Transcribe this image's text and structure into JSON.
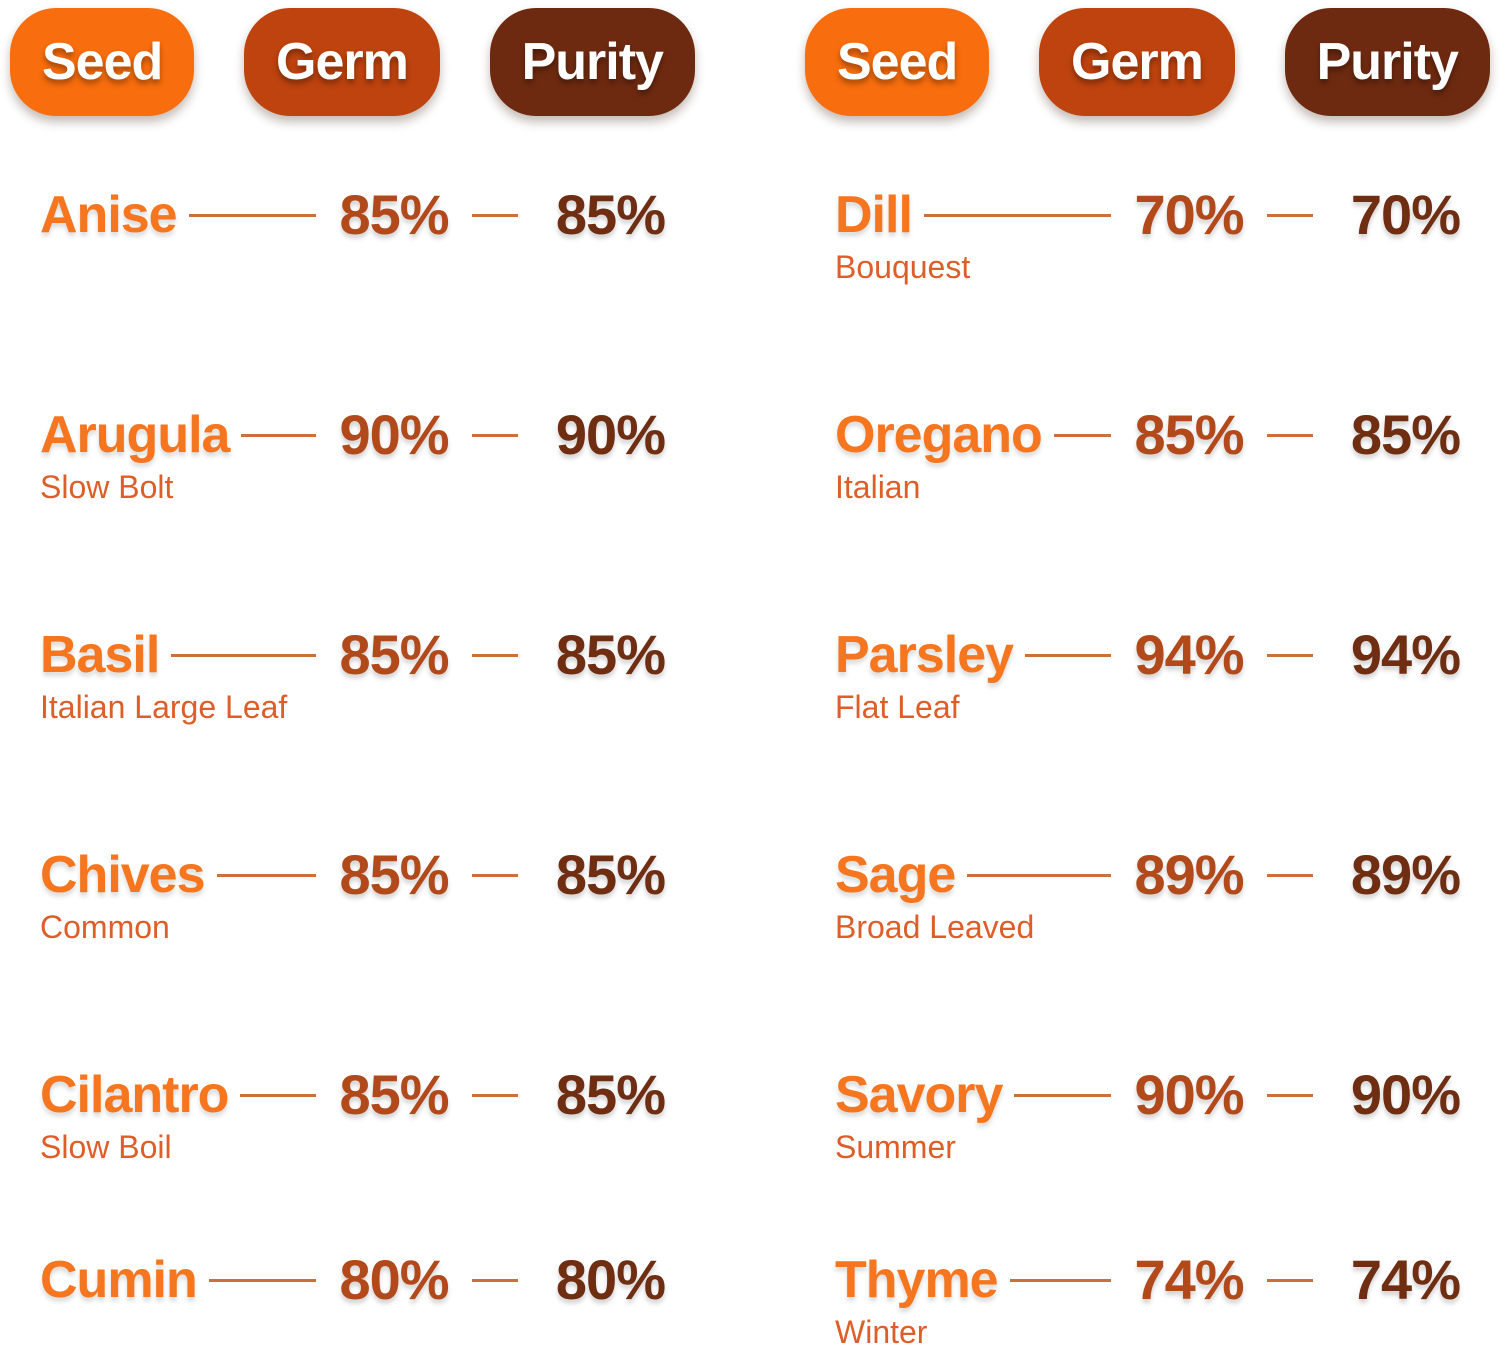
{
  "title_pills": {
    "seed": "Seed",
    "germ": "Germ",
    "purity": "Purity"
  },
  "colors": {
    "seed_pill": "#f86d0d",
    "germ_pill": "#be430e",
    "purity_pill": "#6e2a10",
    "name_text": "#f5761f",
    "variety_text": "#de5e2a",
    "germ_value_text": "#b2491a",
    "purity_value_text": "#6f2d12",
    "connector_line": "#cc6f38",
    "pill_label_text": "#ffffff",
    "background": "#ffffff"
  },
  "columns": [
    {
      "rows": [
        {
          "name": "Anise",
          "variety": "",
          "germ": "85%",
          "purity": "85%"
        },
        {
          "name": "Arugula",
          "variety": "Slow Bolt",
          "germ": "90%",
          "purity": "90%"
        },
        {
          "name": "Basil",
          "variety": "Italian Large Leaf",
          "germ": "85%",
          "purity": "85%"
        },
        {
          "name": "Chives",
          "variety": "Common",
          "germ": "85%",
          "purity": "85%"
        },
        {
          "name": "Cilantro",
          "variety": "Slow Boil",
          "germ": "85%",
          "purity": "85%"
        },
        {
          "name": "Cumin",
          "variety": "",
          "germ": "80%",
          "purity": "80%"
        }
      ]
    },
    {
      "rows": [
        {
          "name": "Dill",
          "variety": "Bouquest",
          "germ": "70%",
          "purity": "70%"
        },
        {
          "name": "Oregano",
          "variety": "Italian",
          "germ": "85%",
          "purity": "85%"
        },
        {
          "name": "Parsley",
          "variety": "Flat Leaf",
          "germ": "94%",
          "purity": "94%"
        },
        {
          "name": "Sage",
          "variety": "Broad Leaved",
          "germ": "89%",
          "purity": "89%"
        },
        {
          "name": "Savory",
          "variety": "Summer",
          "germ": "90%",
          "purity": "90%"
        },
        {
          "name": "Thyme",
          "variety": "Winter",
          "germ": "74%",
          "purity": "74%"
        }
      ]
    }
  ],
  "chart_data": {
    "type": "table",
    "columns": [
      "Seed",
      "Germ",
      "Purity"
    ],
    "rows": [
      {
        "seed": "Anise",
        "variety": "",
        "germ_pct": 85,
        "purity_pct": 85
      },
      {
        "seed": "Arugula",
        "variety": "Slow Bolt",
        "germ_pct": 90,
        "purity_pct": 90
      },
      {
        "seed": "Basil",
        "variety": "Italian Large Leaf",
        "germ_pct": 85,
        "purity_pct": 85
      },
      {
        "seed": "Chives",
        "variety": "Common",
        "germ_pct": 85,
        "purity_pct": 85
      },
      {
        "seed": "Cilantro",
        "variety": "Slow Boil",
        "germ_pct": 85,
        "purity_pct": 85
      },
      {
        "seed": "Cumin",
        "variety": "",
        "germ_pct": 80,
        "purity_pct": 80
      },
      {
        "seed": "Dill",
        "variety": "Bouquest",
        "germ_pct": 70,
        "purity_pct": 70
      },
      {
        "seed": "Oregano",
        "variety": "Italian",
        "germ_pct": 85,
        "purity_pct": 85
      },
      {
        "seed": "Parsley",
        "variety": "Flat Leaf",
        "germ_pct": 94,
        "purity_pct": 94
      },
      {
        "seed": "Sage",
        "variety": "Broad Leaved",
        "germ_pct": 89,
        "purity_pct": 89
      },
      {
        "seed": "Savory",
        "variety": "Summer",
        "germ_pct": 90,
        "purity_pct": 90
      },
      {
        "seed": "Thyme",
        "variety": "Winter",
        "germ_pct": 74,
        "purity_pct": 74
      }
    ]
  }
}
